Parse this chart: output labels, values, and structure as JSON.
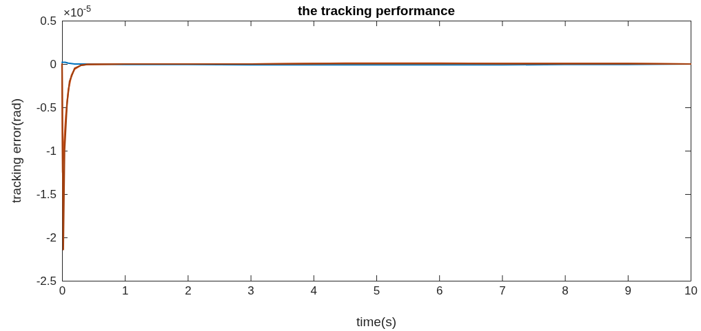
{
  "chart_data": {
    "type": "line",
    "title": "the tracking performance",
    "xlabel": "time(s)",
    "ylabel": "tracking error(rad)",
    "annotations": [
      "×10$^{-5}$"
    ],
    "xlim": [
      0,
      10
    ],
    "xticks": [
      0,
      1,
      2,
      3,
      4,
      5,
      6,
      7,
      8,
      9,
      10
    ],
    "ylim": [
      -2.5,
      0.5
    ],
    "yticks": [
      0.5,
      0,
      -0.5,
      -1,
      -1.5,
      -2,
      -2.5
    ],
    "grid": false,
    "line_style": "solid",
    "marker": "none",
    "series": [
      {
        "color": "#0072bd",
        "x": [
          0,
          0.05,
          0.1,
          0.2,
          0.4,
          1,
          2,
          3,
          4,
          5,
          6,
          7,
          8,
          9,
          10
        ],
        "values": [
          0.02,
          0.02,
          0.01,
          0.0,
          0.0,
          -0.005,
          -0.005,
          -0.01,
          -0.01,
          -0.01,
          -0.01,
          -0.01,
          -0.005,
          -0.005,
          0
        ]
      },
      {
        "color": "#d95319",
        "x": [
          0,
          0.01,
          0.03,
          0.06,
          0.1,
          0.15,
          0.2,
          0.3,
          0.4,
          1,
          2,
          3,
          4,
          4.5,
          5,
          5.5,
          6,
          7,
          8,
          9,
          10
        ],
        "values": [
          0,
          -1.25,
          -0.95,
          -0.6,
          -0.3,
          -0.13,
          -0.06,
          -0.015,
          -0.005,
          0,
          0,
          0,
          0.005,
          0.01,
          0.01,
          0.01,
          0.01,
          0.005,
          0.005,
          0.005,
          0
        ]
      },
      {
        "color": "#a2400f",
        "x": [
          0,
          0.02,
          0.04,
          0.08,
          0.12,
          0.2,
          0.3,
          0.4,
          1,
          2,
          3,
          4,
          5,
          6,
          7,
          8,
          9,
          10
        ],
        "values": [
          0,
          -2.14,
          -1.0,
          -0.45,
          -0.2,
          -0.05,
          -0.015,
          -0.005,
          0,
          0,
          0,
          0.005,
          0.005,
          0.005,
          0.005,
          0.005,
          0.005,
          0
        ]
      }
    ]
  }
}
